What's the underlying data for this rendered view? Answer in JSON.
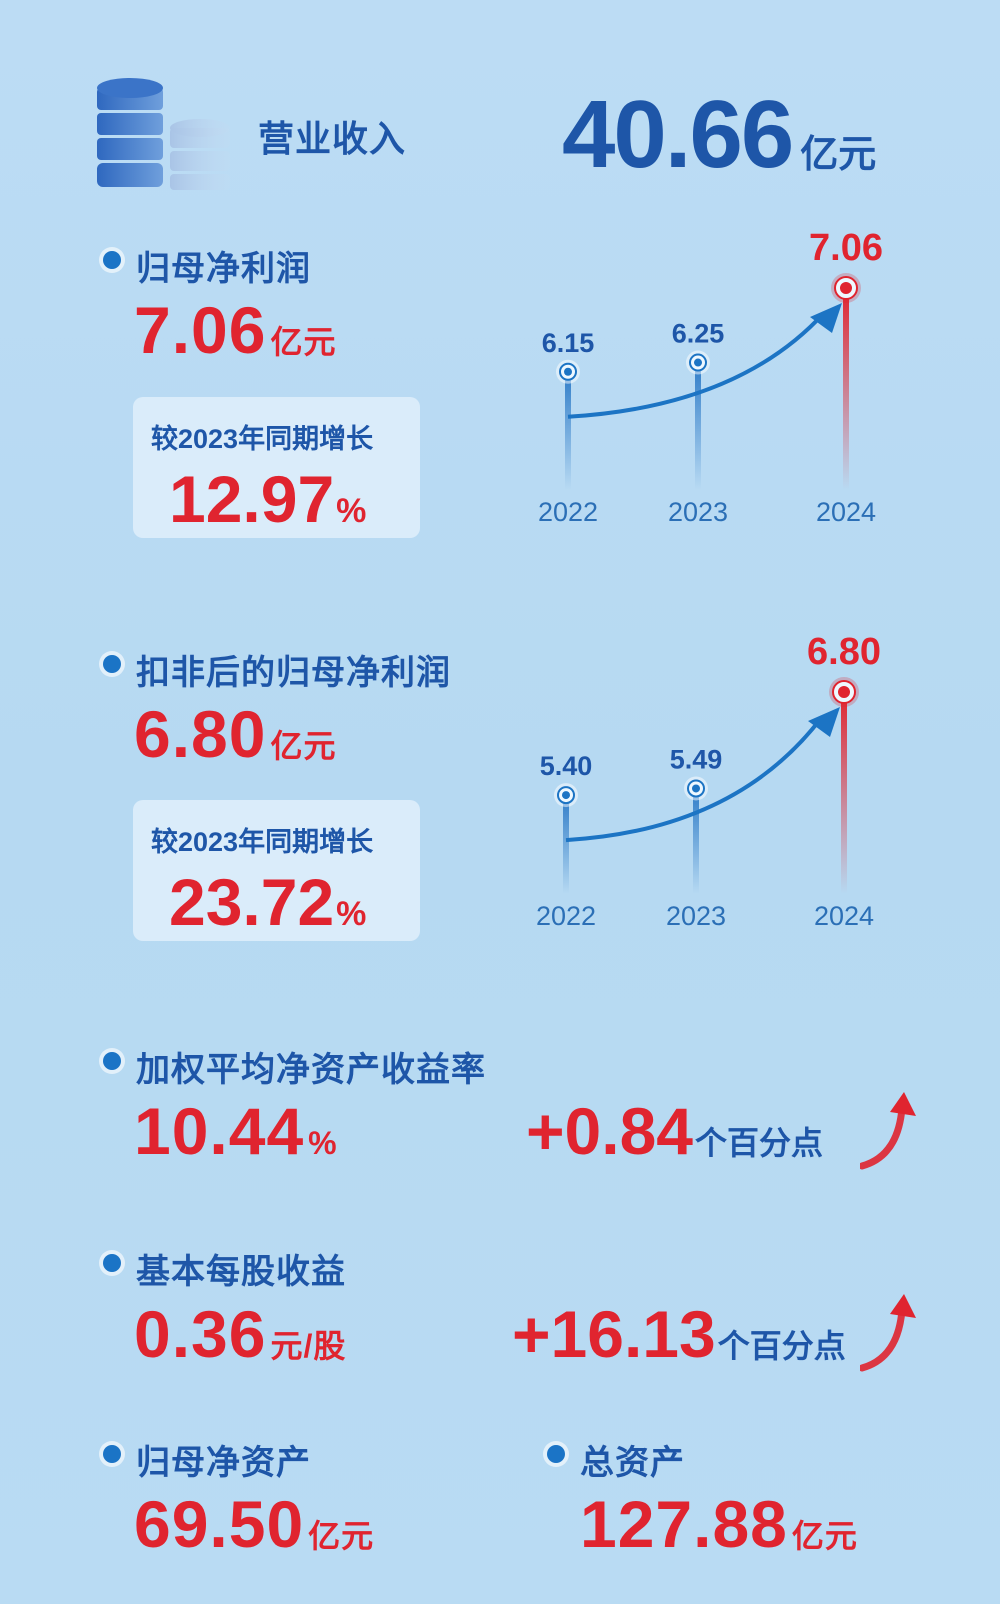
{
  "colors": {
    "accent_red": "#e0242f",
    "accent_blue": "#1e56a8",
    "background": "#b9dbf3"
  },
  "revenue": {
    "icon": "coin-stack-icon",
    "label": "营业收入",
    "value": "40.66",
    "unit": "亿元"
  },
  "net_profit": {
    "label": "归母净利润",
    "value": "7.06",
    "unit": "亿元",
    "growth_label": "较2023年同期增长",
    "growth_value": "12.97",
    "growth_unit": "%"
  },
  "net_profit_deducted": {
    "label": "扣非后的归母净利润",
    "value": "6.80",
    "unit": "亿元",
    "growth_label": "较2023年同期增长",
    "growth_value": "23.72",
    "growth_unit": "%"
  },
  "roe": {
    "label": "加权平均净资产收益率",
    "value": "10.44",
    "unit": "%",
    "change": "+0.84",
    "change_unit": "个百分点",
    "icon": "up-arrow-icon"
  },
  "eps": {
    "label": "基本每股收益",
    "value": "0.36",
    "unit": "元/股",
    "change": "+16.13",
    "change_unit": "个百分点",
    "icon": "up-arrow-icon"
  },
  "net_assets": {
    "label": "归母净资产",
    "value": "69.50",
    "unit": "亿元"
  },
  "total_assets": {
    "label": "总资产",
    "value": "127.88",
    "unit": "亿元"
  },
  "chart_data": [
    {
      "type": "line",
      "categories": [
        "2022",
        "2023",
        "2024"
      ],
      "values": [
        6.15,
        6.25,
        7.06
      ],
      "value_labels": [
        "6.15",
        "6.25",
        "7.06"
      ],
      "ylim": [
        5.3,
        7.06
      ],
      "highlight_color": "#e0242f",
      "base_color": "#1e56a8"
    },
    {
      "type": "line",
      "categories": [
        "2022",
        "2023",
        "2024"
      ],
      "values": [
        5.4,
        5.49,
        6.8
      ],
      "value_labels": [
        "5.40",
        "5.49",
        "6.80"
      ],
      "ylim": [
        4.6,
        6.8
      ],
      "highlight_color": "#e0242f",
      "base_color": "#1e56a8"
    }
  ]
}
